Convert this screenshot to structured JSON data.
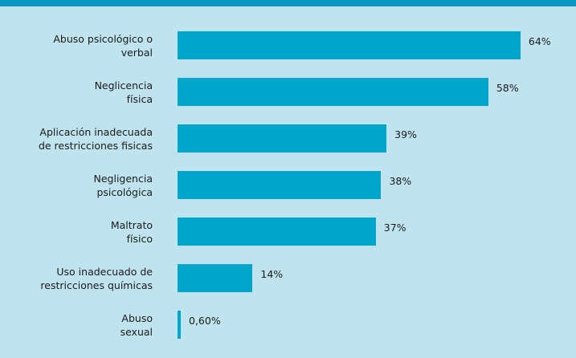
{
  "chart_data": {
    "type": "bar",
    "orientation": "horizontal",
    "categories": [
      "Abuso psicológico o\nverbal",
      "Neglicencia\nfísica",
      "Aplicación inadecuada\nde restricciones fisicas",
      "Negligencia\npsicológica",
      "Maltrato\nfísico",
      "Uso inadecuado de\nrestricciones químicas",
      "Abuso\nsexual"
    ],
    "values": [
      64,
      58,
      39,
      38,
      37,
      14,
      0.6
    ],
    "value_labels": [
      "64%",
      "58%",
      "39%",
      "38%",
      "37%",
      "14%",
      "0,60%"
    ],
    "color": "#00a5cb",
    "xlim": [
      0,
      100
    ]
  }
}
